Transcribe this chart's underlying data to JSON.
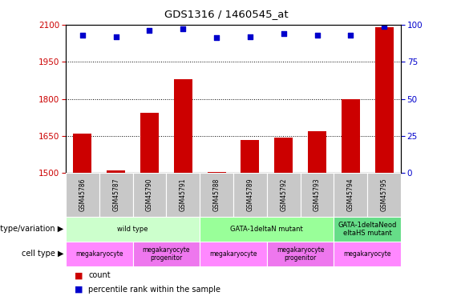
{
  "title": "GDS1316 / 1460545_at",
  "samples": [
    "GSM45786",
    "GSM45787",
    "GSM45790",
    "GSM45791",
    "GSM45788",
    "GSM45789",
    "GSM45792",
    "GSM45793",
    "GSM45794",
    "GSM45795"
  ],
  "counts": [
    1660,
    1510,
    1745,
    1880,
    1505,
    1635,
    1645,
    1670,
    1800,
    2090
  ],
  "percentiles": [
    93,
    92,
    96,
    97,
    91,
    92,
    94,
    93,
    93,
    99
  ],
  "ylim_left": [
    1500,
    2100
  ],
  "ylim_right": [
    0,
    100
  ],
  "yticks_left": [
    1500,
    1650,
    1800,
    1950,
    2100
  ],
  "yticks_right": [
    0,
    25,
    50,
    75,
    100
  ],
  "bar_color": "#cc0000",
  "dot_color": "#0000cc",
  "tick_label_color_left": "#cc0000",
  "tick_label_color_right": "#0000cc",
  "genotype_groups": [
    {
      "label": "wild type",
      "start": 0,
      "end": 4,
      "color": "#ccffcc"
    },
    {
      "label": "GATA-1deltaN mutant",
      "start": 4,
      "end": 8,
      "color": "#99ff99"
    },
    {
      "label": "GATA-1deltaNeod\neltaHS mutant",
      "start": 8,
      "end": 10,
      "color": "#66dd88"
    }
  ],
  "cell_type_groups": [
    {
      "label": "megakaryocyte",
      "start": 0,
      "end": 2,
      "color": "#ff88ff"
    },
    {
      "label": "megakaryocyte\nprogenitor",
      "start": 2,
      "end": 4,
      "color": "#ee77ee"
    },
    {
      "label": "megakaryocyte",
      "start": 4,
      "end": 6,
      "color": "#ff88ff"
    },
    {
      "label": "megakaryocyte\nprogenitor",
      "start": 6,
      "end": 8,
      "color": "#ee77ee"
    },
    {
      "label": "megakaryocyte",
      "start": 8,
      "end": 10,
      "color": "#ff88ff"
    }
  ],
  "genotype_label": "genotype/variation",
  "cell_type_label": "cell type",
  "legend_count_label": "count",
  "legend_pct_label": "percentile rank within the sample",
  "sample_bg_color": "#c8c8c8"
}
